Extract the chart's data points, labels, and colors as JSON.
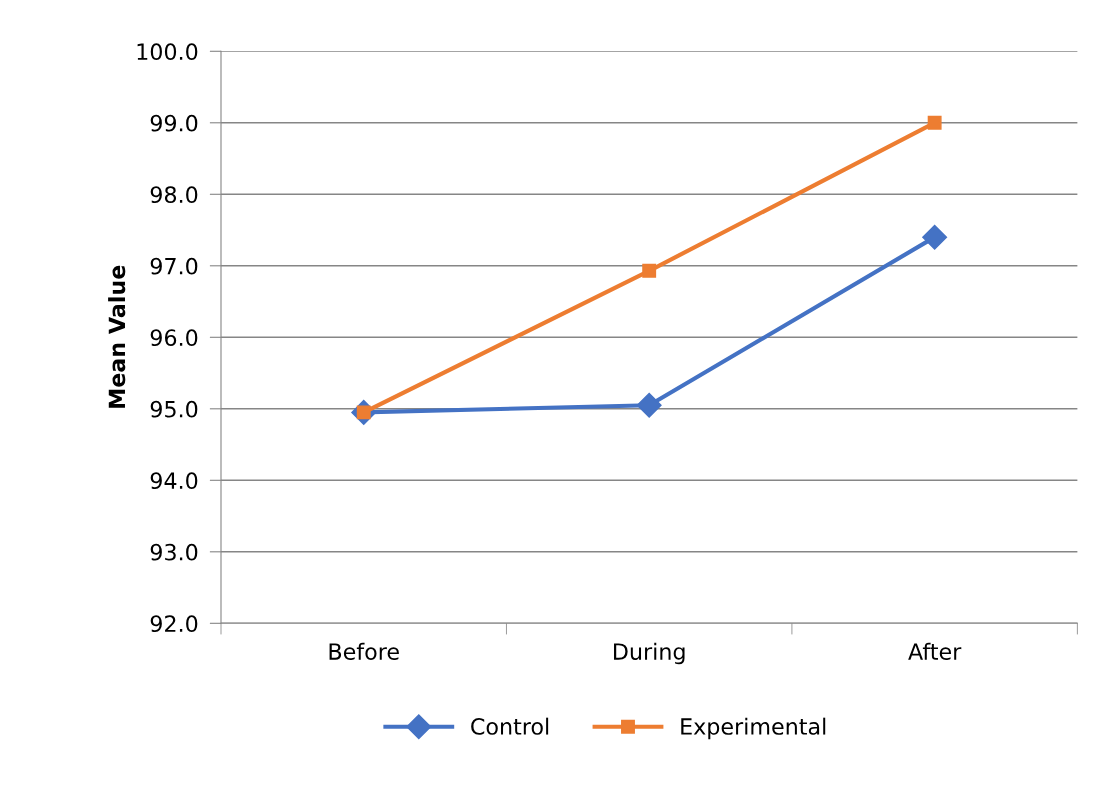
{
  "chart_data": {
    "type": "line",
    "ylabel": "Mean Value",
    "categories": [
      "Before",
      "During",
      "After"
    ],
    "series": [
      {
        "name": "Control",
        "color": "#4472c4",
        "marker": "diamond",
        "values": [
          94.95,
          95.05,
          97.4
        ]
      },
      {
        "name": "Experimental",
        "color": "#ed7d31",
        "marker": "square",
        "values": [
          94.95,
          96.93,
          99.0
        ]
      }
    ],
    "ylim": [
      92,
      100
    ],
    "yticks": [
      {
        "value": 92,
        "label": "92.0"
      },
      {
        "value": 93,
        "label": "93.0"
      },
      {
        "value": 94,
        "label": "94.0"
      },
      {
        "value": 95,
        "label": "95.0"
      },
      {
        "value": 96,
        "label": "96.0"
      },
      {
        "value": 97,
        "label": "97.0"
      },
      {
        "value": 98,
        "label": "98.0"
      },
      {
        "value": 99,
        "label": "99.0"
      },
      {
        "value": 100,
        "label": "100.0"
      }
    ],
    "grid": "y",
    "legend": "bottom",
    "line_style": "solid"
  }
}
